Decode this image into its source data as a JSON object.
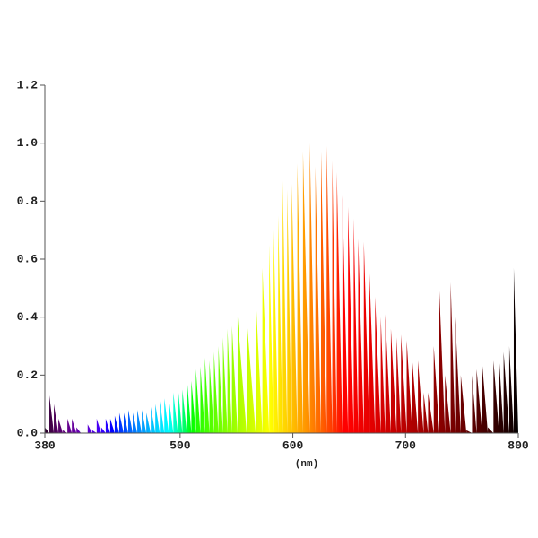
{
  "chart_data": {
    "type": "area",
    "xlabel": "(nm)",
    "x": [
      380,
      384,
      388,
      392,
      396,
      400,
      404,
      408,
      412,
      418,
      422,
      426,
      430,
      434,
      438,
      442,
      446,
      450,
      454,
      458,
      462,
      466,
      470,
      474,
      478,
      482,
      486,
      490,
      494,
      498,
      502,
      506,
      510,
      514,
      518,
      522,
      526,
      530,
      534,
      538,
      542,
      546,
      551,
      559,
      567,
      573,
      579,
      583,
      587,
      591,
      595,
      599,
      604,
      609,
      615,
      620,
      625,
      630,
      635,
      639,
      644,
      649,
      654,
      658,
      663,
      668,
      673,
      678,
      682,
      687,
      692,
      696,
      701,
      706,
      711,
      716,
      720,
      725,
      730,
      735,
      740,
      744,
      749,
      754,
      759,
      763,
      768,
      773,
      778,
      783,
      787,
      792,
      796,
      800
    ],
    "values": [
      0.02,
      0.13,
      0.1,
      0.05,
      0.01,
      0.05,
      0.05,
      0.02,
      0.0,
      0.03,
      0.01,
      0.05,
      0.02,
      0.05,
      0.05,
      0.06,
      0.07,
      0.07,
      0.08,
      0.07,
      0.08,
      0.08,
      0.07,
      0.09,
      0.1,
      0.11,
      0.12,
      0.12,
      0.14,
      0.16,
      0.15,
      0.19,
      0.18,
      0.22,
      0.23,
      0.26,
      0.25,
      0.28,
      0.3,
      0.33,
      0.36,
      0.37,
      0.4,
      0.4,
      0.48,
      0.57,
      0.65,
      0.7,
      0.75,
      0.87,
      0.84,
      0.86,
      0.93,
      0.97,
      1.0,
      0.92,
      0.97,
      0.99,
      0.94,
      0.9,
      0.82,
      0.78,
      0.74,
      0.67,
      0.66,
      0.55,
      0.47,
      0.4,
      0.41,
      0.36,
      0.33,
      0.34,
      0.32,
      0.25,
      0.25,
      0.14,
      0.14,
      0.3,
      0.49,
      0.2,
      0.52,
      0.4,
      0.2,
      0.01,
      0.2,
      0.22,
      0.24,
      0.02,
      0.25,
      0.26,
      0.28,
      0.3,
      0.57,
      0.01
    ],
    "xlim": [
      380,
      800
    ],
    "ylim": [
      0,
      1.2
    ],
    "xticks": [
      380,
      500,
      600,
      700,
      800
    ],
    "yticks": [
      {
        "value": 0,
        "label": "0.0"
      },
      0.2,
      0.4,
      0.6,
      0.8,
      {
        "value": 1,
        "label": "1.0"
      },
      1.2
    ]
  }
}
